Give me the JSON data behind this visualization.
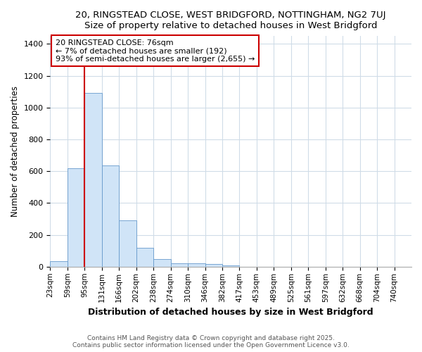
{
  "title1": "20, RINGSTEAD CLOSE, WEST BRIDGFORD, NOTTINGHAM, NG2 7UJ",
  "title2": "Size of property relative to detached houses in West Bridgford",
  "xlabel": "Distribution of detached houses by size in West Bridgford",
  "ylabel": "Number of detached properties",
  "bin_labels": [
    "23sqm",
    "59sqm",
    "95sqm",
    "131sqm",
    "166sqm",
    "202sqm",
    "238sqm",
    "274sqm",
    "310sqm",
    "346sqm",
    "382sqm",
    "417sqm",
    "453sqm",
    "489sqm",
    "525sqm",
    "561sqm",
    "597sqm",
    "632sqm",
    "668sqm",
    "704sqm",
    "740sqm"
  ],
  "bar_heights": [
    35,
    620,
    1090,
    635,
    290,
    120,
    50,
    22,
    22,
    18,
    10,
    0,
    0,
    0,
    0,
    0,
    0,
    0,
    0,
    0,
    0
  ],
  "bar_color": "#d0e4f7",
  "bar_edge_color": "#6699cc",
  "property_line_x": 2,
  "property_line_color": "#cc0000",
  "ylim": [
    0,
    1450
  ],
  "yticks": [
    0,
    200,
    400,
    600,
    800,
    1000,
    1200,
    1400
  ],
  "annotation_text": "20 RINGSTEAD CLOSE: 76sqm\n← 7% of detached houses are smaller (192)\n93% of semi-detached houses are larger (2,655) →",
  "annotation_box_color": "#ffffff",
  "annotation_box_edgecolor": "#cc0000",
  "footer1": "Contains HM Land Registry data © Crown copyright and database right 2025.",
  "footer2": "Contains public sector information licensed under the Open Government Licence v3.0.",
  "bg_color": "#ffffff",
  "plot_bg_color": "#ffffff",
  "grid_color": "#d0dce8"
}
